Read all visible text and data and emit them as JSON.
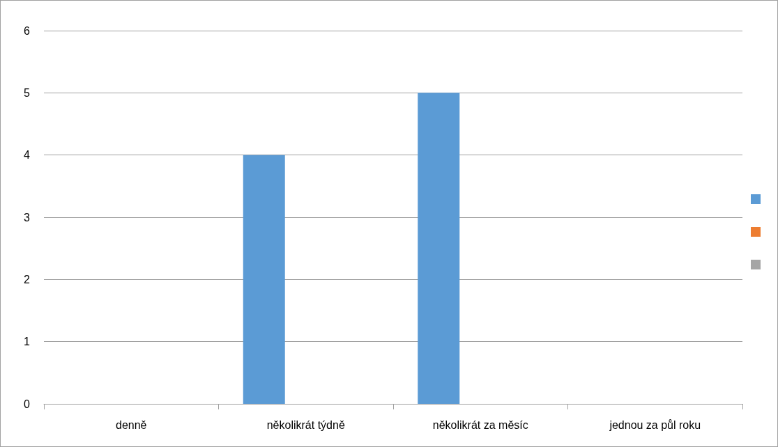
{
  "chart_data": {
    "type": "bar",
    "categories": [
      "denně",
      "několikrát týdně",
      "několikrát za měsíc",
      "jednou za půl roku"
    ],
    "series": [
      {
        "color": "#5b9bd5",
        "values": [
          0,
          4,
          5,
          0
        ]
      },
      {
        "color": "#ed7d31",
        "values": [
          null,
          null,
          null,
          null
        ]
      },
      {
        "color": "#a5a5a5",
        "values": [
          null,
          null,
          null,
          null
        ]
      }
    ],
    "ylim": [
      0,
      6
    ],
    "yticks": [
      0,
      1,
      2,
      3,
      4,
      5,
      6
    ],
    "grid": "y"
  }
}
